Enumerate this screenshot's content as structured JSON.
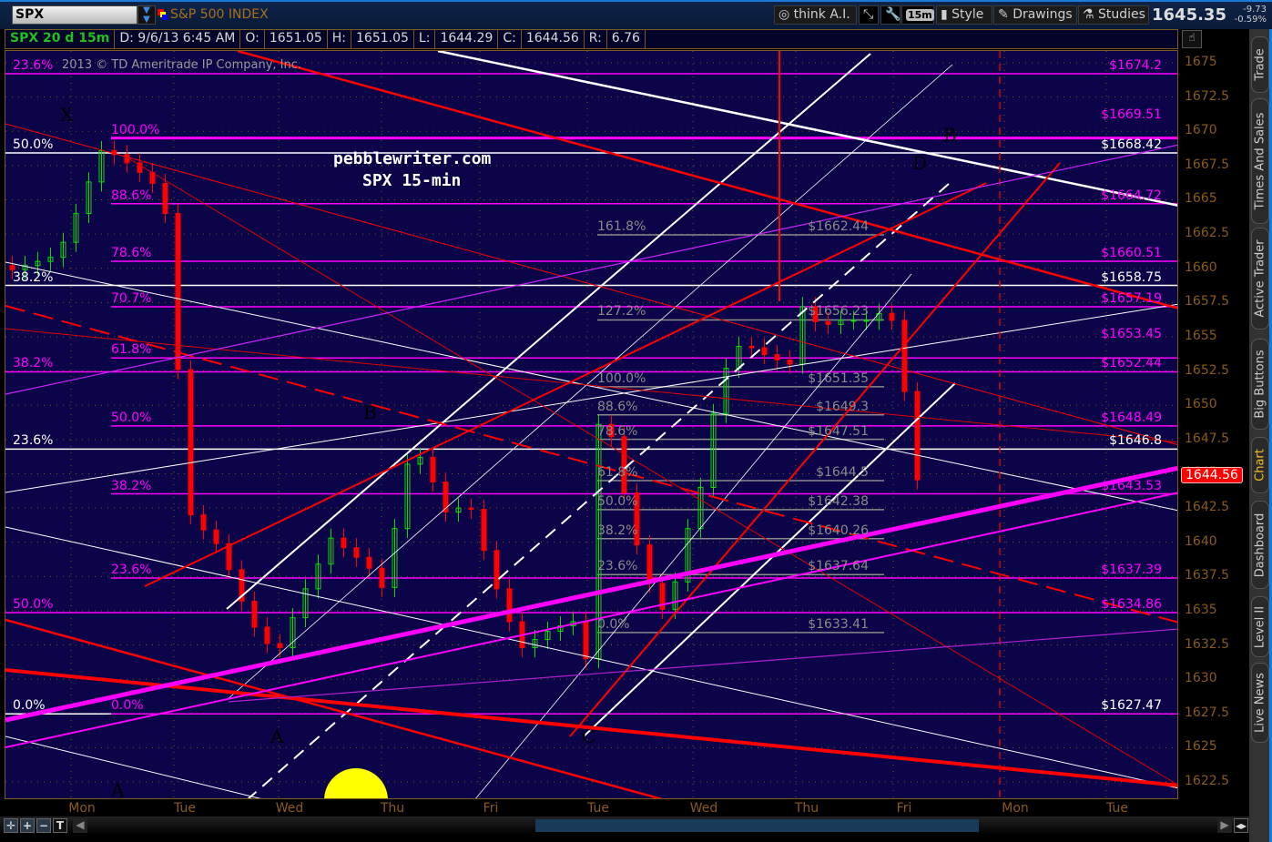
{
  "toolbar": {
    "symbol": "SPX",
    "symbol_name": "S&P 500 INDEX",
    "think_ai": "think A.I.",
    "timeframe": "15m",
    "style": "Style",
    "drawings": "Drawings",
    "studies": "Studies",
    "last": "1645.35",
    "change": "-9.73",
    "change_pct": "-0.59%"
  },
  "infobar": {
    "title": "SPX 20 d 15m",
    "date": "D: 9/6/13 6:45 AM",
    "o_label": "O:",
    "o": "1651.05",
    "h_label": "H:",
    "h": "1651.05",
    "l_label": "L:",
    "l": "1644.29",
    "c_label": "C:",
    "c": "1644.56",
    "r_label": "R:",
    "r": "6.76"
  },
  "copyright": "2013 © TD Ameritrade IP Company, Inc.",
  "watermark": {
    "line1": "pebblewriter.com",
    "line2": "SPX 15-min"
  },
  "annotations": [
    {
      "text": "X",
      "color": "#ff00ff"
    },
    {
      "text": "B",
      "color": "#ff00ff"
    },
    {
      "text": "A",
      "color": "#ff00ff"
    },
    {
      "text": "C",
      "color": "#ff00ff"
    },
    {
      "text": "D",
      "color": "#ff00ff"
    },
    {
      "text": "B",
      "color": "#ffffff"
    },
    {
      "text": "A",
      "color": "#ffffff"
    }
  ],
  "sidebar": {
    "tabs": [
      "Trade",
      "Times And Sales",
      "Active Trader",
      "Big Buttons",
      "Chart",
      "Dashboard",
      "Level II",
      "Live News"
    ],
    "active": "Chart"
  },
  "bottom_tools": [
    "crosshair",
    "zoom-in",
    "zoom-out",
    "T"
  ],
  "colors": {
    "background": "#0b0448",
    "up": "#00e000",
    "down": "#ff0000",
    "fib_magenta": "#ff00ff",
    "fib_white": "#ffffff",
    "fib_gray": "#8a8a8a",
    "axis": "#8a5a1a"
  },
  "chart_data": {
    "type": "candlestick",
    "symbol": "SPX",
    "interval": "15m",
    "x_tick_labels": [
      "Mon",
      "Tue",
      "Wed",
      "Thu",
      "Fri",
      "Tue",
      "Wed",
      "Thu",
      "Fri",
      "Mon",
      "Tue"
    ],
    "y_ticks": [
      "1675",
      "1672.5",
      "1670",
      "1667.5",
      "1665",
      "1662.5",
      "1660",
      "1657.5",
      "1655",
      "1652.5",
      "1650",
      "1647.5",
      "1645",
      "1642.5",
      "1640",
      "1637.5",
      "1635",
      "1632.5",
      "1630",
      "1627.5",
      "1625",
      "1622.5"
    ],
    "ylim": [
      1621,
      1676
    ],
    "last_price": "1644.56",
    "closes": [
      1659.9,
      1660.2,
      1660.5,
      1660.8,
      1661.9,
      1664,
      1666.3,
      1668.6,
      1668.3,
      1667.7,
      1667,
      1666.2,
      1664,
      1652.6,
      1642,
      1640.9,
      1639.9,
      1638,
      1635.7,
      1633.8,
      1632.6,
      1632.3,
      1634.5,
      1636.6,
      1638.4,
      1640.3,
      1639.6,
      1638.9,
      1638.1,
      1636.7,
      1641,
      1645.7,
      1646.2,
      1644.4,
      1642.2,
      1642.5,
      1642.4,
      1639.4,
      1636.6,
      1634.2,
      1632.3,
      1632.9,
      1633.5,
      1633.9,
      1634.2,
      1631.5,
      1648.6,
      1647.7,
      1643.6,
      1639.8,
      1637,
      1635.1,
      1637.1,
      1641,
      1644,
      1649.4,
      1652.7,
      1654.3,
      1654.2,
      1653.7,
      1653.3,
      1653,
      1657.2,
      1656.1,
      1655.9,
      1656.2,
      1656.2,
      1656.2,
      1656.7,
      1656.2,
      1651,
      1644.56
    ],
    "levels_white": [
      {
        "price": 1668.42,
        "left": "50.0%",
        "right": "$1668.42"
      },
      {
        "price": 1658.75,
        "left": "38.2%",
        "right": "$1658.75"
      },
      {
        "price": 1646.8,
        "left": "23.6%",
        "right": "$1646.8"
      },
      {
        "price": 1627.47,
        "left": "0.0%",
        "right": "$1627.47"
      }
    ],
    "levels_magenta_full": [
      {
        "price": 1674.2,
        "left": "23.6%",
        "right": "$1674.2"
      },
      {
        "price": 1652.44,
        "left": "38.2%",
        "right": "$1652.44"
      },
      {
        "price": 1634.86,
        "left": "50.0%",
        "right": "$1634.86"
      }
    ],
    "levels_magenta": [
      {
        "price": 1669.51,
        "left": "100.0%",
        "right": "$1669.51"
      },
      {
        "price": 1664.72,
        "left": "88.6%",
        "right": "$1664.72"
      },
      {
        "price": 1660.51,
        "left": "78.6%",
        "right": "$1660.51"
      },
      {
        "price": 1657.19,
        "left": "70.7%",
        "right": "$1657.19"
      },
      {
        "price": 1653.45,
        "left": "61.8%",
        "right": "$1653.45"
      },
      {
        "price": 1648.49,
        "left": "50.0%",
        "right": "$1648.49"
      },
      {
        "price": 1643.53,
        "left": "38.2%",
        "right": "$1643.53"
      },
      {
        "price": 1637.39,
        "left": "23.6%",
        "right": "$1637.39"
      },
      {
        "price": 1627.47,
        "left": "0.0%",
        "right": ""
      }
    ],
    "levels_gray": [
      {
        "price": 1662.44,
        "left": "161.8%",
        "right": "$1662.44"
      },
      {
        "price": 1656.23,
        "left": "127.2%",
        "right": "$1656.23"
      },
      {
        "price": 1651.35,
        "left": "100.0%",
        "right": "$1651.35"
      },
      {
        "price": 1649.3,
        "left": "88.6%",
        "right": "$1649.3"
      },
      {
        "price": 1647.51,
        "left": "78.6%",
        "right": "$1647.51"
      },
      {
        "price": 1644.5,
        "left": "61.8%",
        "right": "$1644.5"
      },
      {
        "price": 1642.38,
        "left": "50.0%",
        "right": "$1642.38"
      },
      {
        "price": 1640.26,
        "left": "38.2%",
        "right": "$1640.26"
      },
      {
        "price": 1637.64,
        "left": "23.6%",
        "right": "$1637.64"
      },
      {
        "price": 1633.41,
        "left": "0.0%",
        "right": "$1633.41"
      }
    ]
  }
}
